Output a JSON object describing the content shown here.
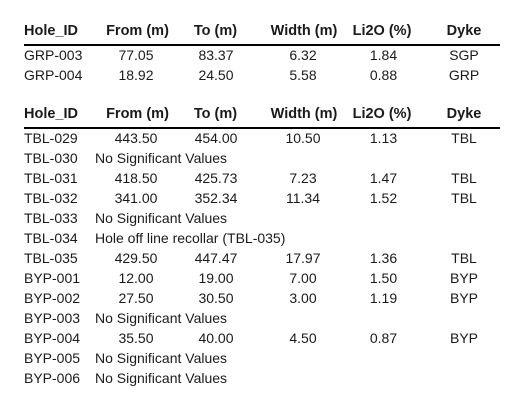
{
  "headers": [
    "Hole_ID",
    "From (m)",
    "To (m)",
    "Width (m)",
    "Li2O (%)",
    "Dyke"
  ],
  "table1": [
    {
      "id": "GRP-003",
      "from": "77.05",
      "to": "83.37",
      "width": "6.32",
      "li2o": "1.84",
      "dyke": "SGP"
    },
    {
      "id": "GRP-004",
      "from": "18.92",
      "to": "24.50",
      "width": "5.58",
      "li2o": "0.88",
      "dyke": "GRP"
    }
  ],
  "table2": [
    {
      "id": "TBL-029",
      "from": "443.50",
      "to": "454.00",
      "width": "10.50",
      "li2o": "1.13",
      "dyke": "TBL"
    },
    {
      "id": "TBL-030",
      "note": "No Significant Values"
    },
    {
      "id": "TBL-031",
      "from": "418.50",
      "to": "425.73",
      "width": "7.23",
      "li2o": "1.47",
      "dyke": "TBL"
    },
    {
      "id": "TBL-032",
      "from": "341.00",
      "to": "352.34",
      "width": "11.34",
      "li2o": "1.52",
      "dyke": "TBL"
    },
    {
      "id": "TBL-033",
      "note": "No Significant Values"
    },
    {
      "id": "TBL-034",
      "note": "Hole off line recollar (TBL-035)"
    },
    {
      "id": "TBL-035",
      "from": "429.50",
      "to": "447.47",
      "width": "17.97",
      "li2o": "1.36",
      "dyke": "TBL"
    },
    {
      "id": "BYP-001",
      "from": "12.00",
      "to": "19.00",
      "width": "7.00",
      "li2o": "1.50",
      "dyke": "BYP"
    },
    {
      "id": "BYP-002",
      "from": "27.50",
      "to": "30.50",
      "width": "3.00",
      "li2o": "1.19",
      "dyke": "BYP"
    },
    {
      "id": "BYP-003",
      "note": "No Significant Values"
    },
    {
      "id": "BYP-004",
      "from": "35.50",
      "to": "40.00",
      "width": "4.50",
      "li2o": "0.87",
      "dyke": "BYP"
    },
    {
      "id": "BYP-005",
      "note": "No Significant Values"
    },
    {
      "id": "BYP-006",
      "note": "No Significant Values"
    }
  ]
}
